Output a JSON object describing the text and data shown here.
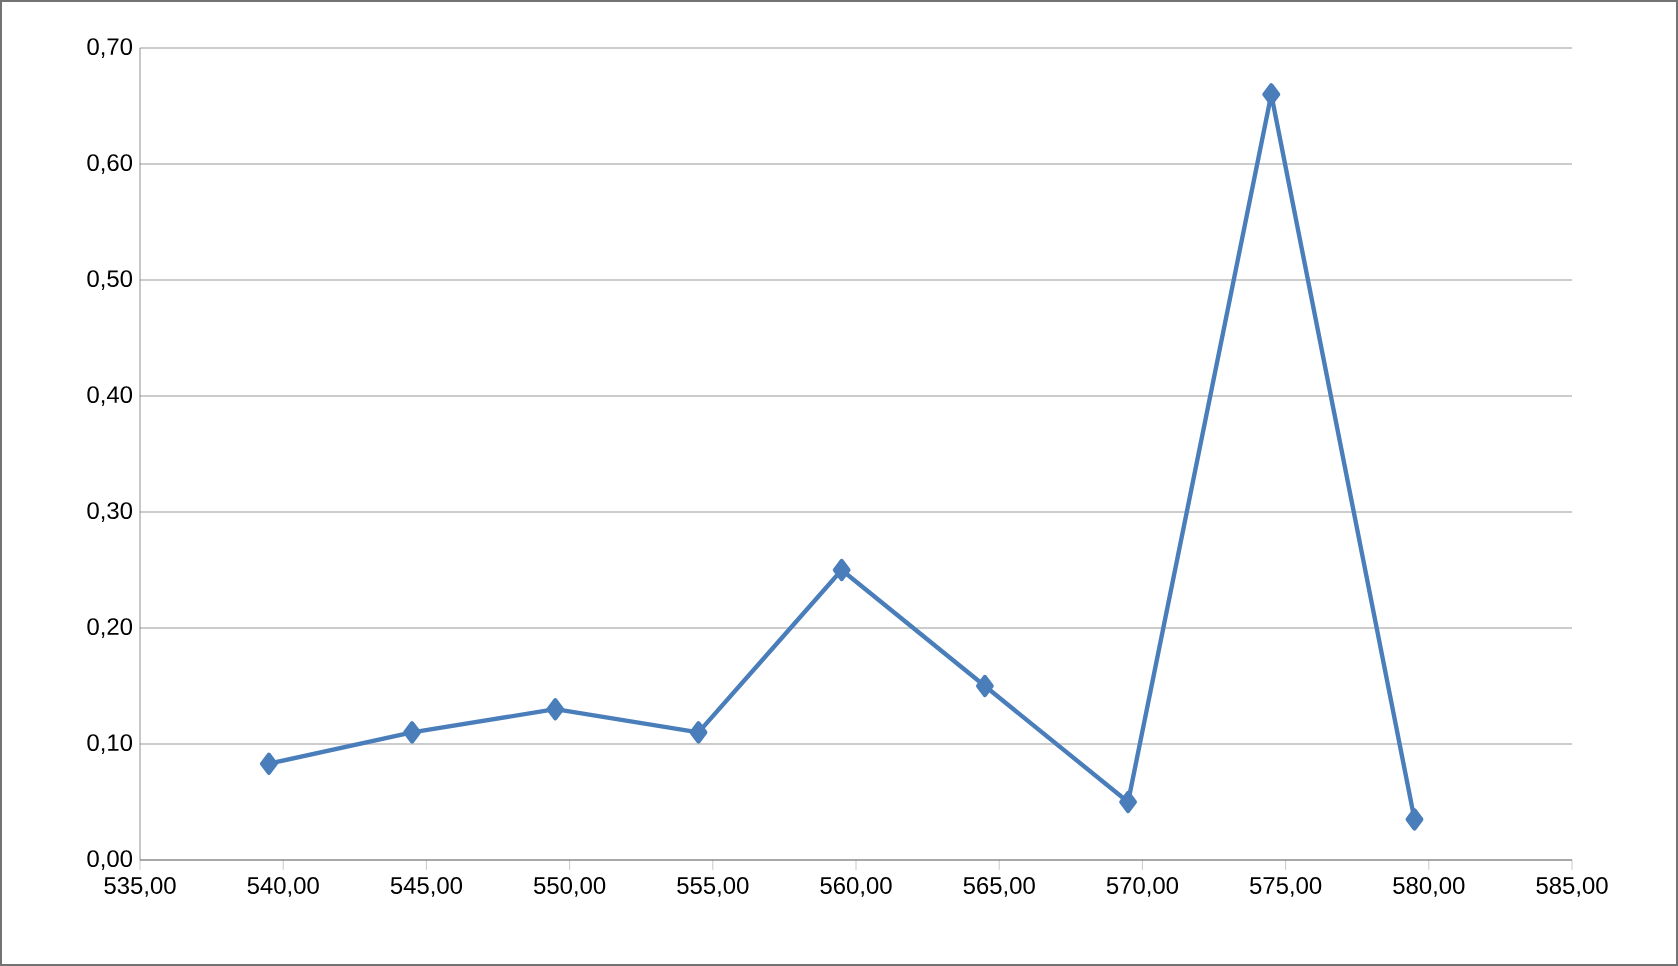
{
  "chart_data": {
    "type": "line",
    "x": [
      539.5,
      544.5,
      549.5,
      554.5,
      559.5,
      564.5,
      569.5,
      574.5,
      579.5
    ],
    "series": [
      {
        "color": "#4a7ebb",
        "values": [
          0.083,
          0.11,
          0.13,
          0.11,
          0.25,
          0.15,
          0.05,
          0.66,
          0.035
        ]
      }
    ],
    "xlim": [
      535,
      585
    ],
    "xticks": [
      {
        "value": 535,
        "label": "535,00"
      },
      {
        "value": 540,
        "label": "540,00"
      },
      {
        "value": 545,
        "label": "545,00"
      },
      {
        "value": 550,
        "label": "550,00"
      },
      {
        "value": 555,
        "label": "555,00"
      },
      {
        "value": 560,
        "label": "560,00"
      },
      {
        "value": 565,
        "label": "565,00"
      },
      {
        "value": 570,
        "label": "570,00"
      },
      {
        "value": 575,
        "label": "575,00"
      },
      {
        "value": 580,
        "label": "580,00"
      },
      {
        "value": 585,
        "label": "585,00"
      }
    ],
    "ylim": [
      0,
      0.7
    ],
    "yticks": [
      {
        "value": 0,
        "label": "0,00"
      },
      {
        "value": 0.1,
        "label": "0,10"
      },
      {
        "value": 0.2,
        "label": "0,20"
      },
      {
        "value": 0.3,
        "label": "0,30"
      },
      {
        "value": 0.4,
        "label": "0,40"
      },
      {
        "value": 0.5,
        "label": "0,50"
      },
      {
        "value": 0.6,
        "label": "0,60"
      },
      {
        "value": 0.7,
        "label": "0,70"
      }
    ],
    "grid": "y",
    "marker": "diamond",
    "line_style": "solid"
  }
}
